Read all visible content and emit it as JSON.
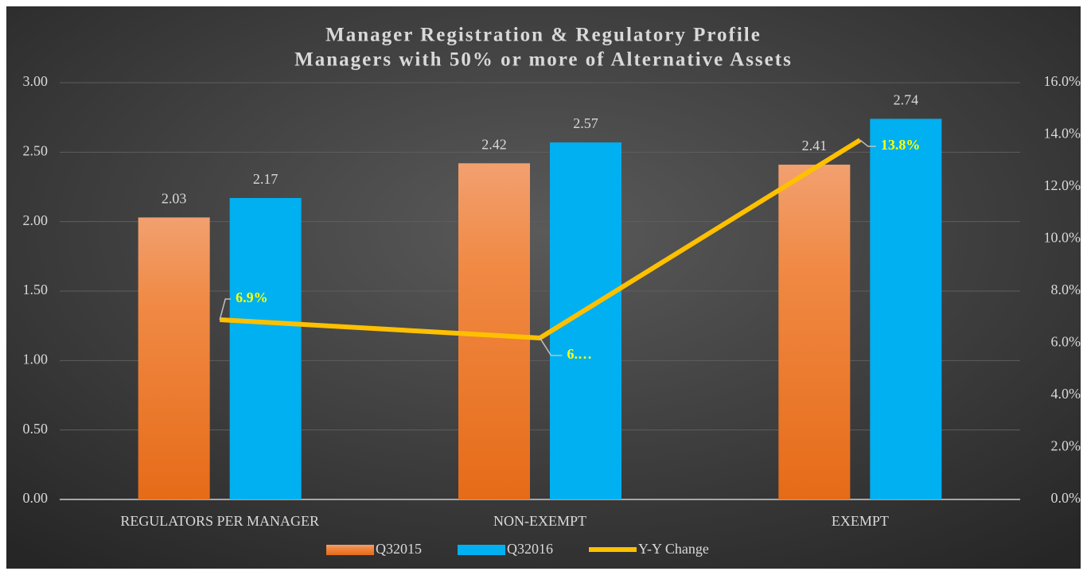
{
  "chart_data": {
    "type": "bar-line",
    "title": "Manager Registration & Regulatory Profile",
    "subtitle": "Managers with 50% or more of Alternative Assets",
    "categories": [
      "REGULATORS PER MANAGER",
      "NON-EXEMPT",
      "EXEMPT"
    ],
    "series": [
      {
        "name": "Q32015",
        "color": "#f0803a",
        "type": "bar",
        "values": [
          2.03,
          2.42,
          2.41
        ]
      },
      {
        "name": "Q32016",
        "color": "#00b0f0",
        "type": "bar",
        "values": [
          2.17,
          2.57,
          2.74
        ]
      },
      {
        "name": "Y-Y Change",
        "color": "#ffc000",
        "type": "line",
        "axis": "y2",
        "values": [
          6.9,
          6.2,
          13.8
        ],
        "value_labels": [
          "6.9%",
          "6.…",
          "13.8%"
        ]
      }
    ],
    "ylim": [
      0,
      3
    ],
    "yticks": [
      {
        "value": 0,
        "label": "0.00"
      },
      {
        "value": 0.5,
        "label": "0.50"
      },
      {
        "value": 1,
        "label": "1.00"
      },
      {
        "value": 1.5,
        "label": "1.50"
      },
      {
        "value": 2,
        "label": "2.00"
      },
      {
        "value": 2.5,
        "label": "2.50"
      },
      {
        "value": 3,
        "label": "3.00"
      }
    ],
    "y2lim": [
      0,
      16
    ],
    "y2ticks": [
      {
        "value": 0,
        "label": "0.0%"
      },
      {
        "value": 2,
        "label": "2.0%"
      },
      {
        "value": 4,
        "label": "4.0%"
      },
      {
        "value": 6,
        "label": "6.0%"
      },
      {
        "value": 8,
        "label": "8.0%"
      },
      {
        "value": 10,
        "label": "10.0%"
      },
      {
        "value": 12,
        "label": "12.0%"
      },
      {
        "value": 14,
        "label": "14.0%"
      },
      {
        "value": 16,
        "label": "16.0%"
      }
    ],
    "grid": true,
    "legend": "bottom"
  }
}
